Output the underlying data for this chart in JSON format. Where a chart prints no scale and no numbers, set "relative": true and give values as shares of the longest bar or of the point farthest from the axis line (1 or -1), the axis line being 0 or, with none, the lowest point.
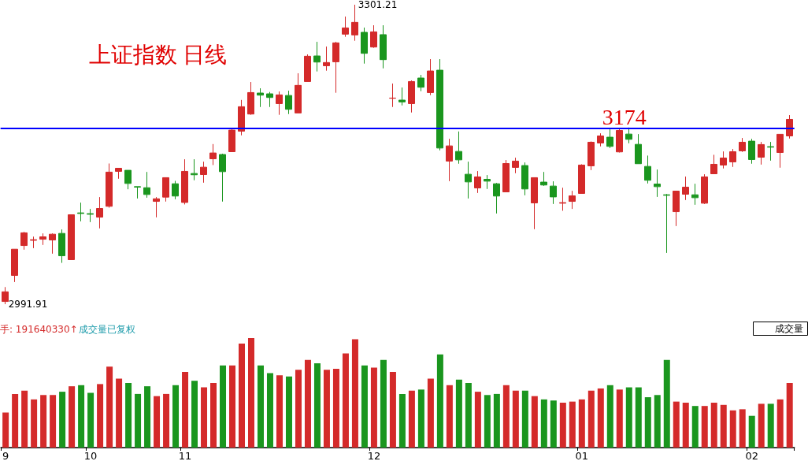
{
  "chart_data": [
    {
      "type": "candlestick",
      "title": "上证指数 日线",
      "tick_labels": false,
      "categories": [
        "9",
        null,
        null,
        null,
        null,
        null,
        null,
        null,
        null,
        "10",
        null,
        null,
        null,
        null,
        null,
        null,
        null,
        null,
        null,
        "11",
        null,
        null,
        null,
        null,
        null,
        null,
        null,
        null,
        null,
        null,
        null,
        null,
        null,
        null,
        null,
        null,
        null,
        null,
        null,
        "12",
        null,
        null,
        null,
        null,
        null,
        null,
        null,
        null,
        null,
        null,
        null,
        null,
        null,
        null,
        null,
        null,
        null,
        null,
        null,
        null,
        null,
        "01",
        null,
        null,
        null,
        null,
        null,
        null,
        null,
        null,
        null,
        null,
        null,
        null,
        null,
        null,
        null,
        null,
        null,
        "02",
        null,
        null,
        null,
        null
      ],
      "ohlc": [
        [
          2994.7,
          3009.6,
          2991.91,
          3004.7
        ],
        [
          3021.6,
          3048.7,
          3014.8,
          3048.7
        ],
        [
          3052.5,
          3066.6,
          3048.2,
          3065.6
        ],
        [
          3057.9,
          3061.7,
          3049.8,
          3058.5
        ],
        [
          3059.0,
          3065.0,
          3053.1,
          3061.5
        ],
        [
          3058.2,
          3065.0,
          3044.1,
          3064.2
        ],
        [
          3065.0,
          3069.1,
          3034.6,
          3041.9
        ],
        [
          3037.9,
          3084.3,
          3037.9,
          3084.3
        ],
        [
          3086.2,
          3096.8,
          3077.5,
          3085.6
        ],
        [
          3085.4,
          3090.3,
          3076.7,
          3084.8
        ],
        [
          3081.8,
          3102.5,
          3070.2,
          3090.8
        ],
        [
          3093.0,
          3137.2,
          3091.6,
          3128.3
        ],
        [
          3129.1,
          3132.3,
          3121.5,
          3132.3
        ],
        [
          3130.2,
          3130.2,
          3110.6,
          3116.6
        ],
        [
          3113.3,
          3113.3,
          3101.1,
          3112.8
        ],
        [
          3112.2,
          3128.5,
          3101.9,
          3105.2
        ],
        [
          3098.1,
          3102.5,
          3081.6,
          3100.8
        ],
        [
          3102.5,
          3122.6,
          3097.9,
          3122.6
        ],
        [
          3116.3,
          3119.3,
          3100.3,
          3103.6
        ],
        [
          3097.0,
          3141.6,
          3094.9,
          3129.1
        ],
        [
          3126.9,
          3141.6,
          3119.9,
          3125.6
        ],
        [
          3125.8,
          3139.1,
          3117.4,
          3133.4
        ],
        [
          3142.1,
          3157.3,
          3135.6,
          3148.1
        ],
        [
          3146.5,
          3147.3,
          3097.9,
          3128.8
        ],
        [
          3149.4,
          3172.5,
          3149.4,
          3171.7
        ],
        [
          3170.6,
          3202.9,
          3166.3,
          3195.9
        ],
        [
          3188.3,
          3221.4,
          3187.5,
          3210.5
        ],
        [
          3210.0,
          3214.9,
          3195.6,
          3207.8
        ],
        [
          3209.2,
          3211.1,
          3195.6,
          3205.4
        ],
        [
          3199.1,
          3211.6,
          3187.5,
          3208.1
        ],
        [
          3207.5,
          3212.4,
          3188.3,
          3193.2
        ],
        [
          3189.4,
          3230.4,
          3189.4,
          3217.9
        ],
        [
          3221.9,
          3249.9,
          3221.9,
          3248.0
        ],
        [
          3248.3,
          3262.9,
          3232.3,
          3242.0
        ],
        [
          3238.2,
          3258.0,
          3233.1,
          3241.5
        ],
        [
          3242.3,
          3262.9,
          3210.3,
          3261.8
        ],
        [
          3270.8,
          3289.0,
          3268.1,
          3277.3
        ],
        [
          3270.0,
          3301.21,
          3264.0,
          3283.0
        ],
        [
          3272.7,
          3277.6,
          3240.4,
          3251.0
        ],
        [
          3257.5,
          3280.0,
          3256.7,
          3273.2
        ],
        [
          3270.3,
          3280.0,
          3235.5,
          3244.5
        ],
        [
          3204.6,
          3219.8,
          3195.6,
          3204.8
        ],
        [
          3202.7,
          3215.7,
          3197.2,
          3200.8
        ],
        [
          3199.1,
          3223.0,
          3189.9,
          3221.9
        ],
        [
          3225.5,
          3228.7,
          3211.9,
          3216.0
        ],
        [
          3210.5,
          3245.0,
          3207.8,
          3232.8
        ],
        [
          3233.6,
          3245.0,
          3150.8,
          3153.2
        ],
        [
          3139.7,
          3162.7,
          3119.0,
          3155.4
        ],
        [
          3149.7,
          3170.3,
          3137.0,
          3141.0
        ],
        [
          3126.1,
          3139.1,
          3101.1,
          3118.2
        ],
        [
          3112.0,
          3129.4,
          3106.8,
          3123.4
        ],
        [
          3120.9,
          3125.3,
          3110.9,
          3119.0
        ],
        [
          3116.3,
          3117.1,
          3085.6,
          3103.6
        ],
        [
          3107.9,
          3140.8,
          3107.9,
          3137.2
        ],
        [
          3133.2,
          3143.2,
          3127.2,
          3139.7
        ],
        [
          3135.1,
          3138.3,
          3104.4,
          3110.9
        ],
        [
          3096.5,
          3122.6,
          3069.4,
          3122.6
        ],
        [
          3118.0,
          3128.5,
          3114.1,
          3115.0
        ],
        [
          3113.9,
          3118.8,
          3095.4,
          3102.7
        ],
        [
          3096.2,
          3112.2,
          3088.4,
          3096.8
        ],
        [
          3098.1,
          3109.0,
          3090.3,
          3103.8
        ],
        [
          3106.3,
          3136.4,
          3106.3,
          3135.6
        ],
        [
          3134.8,
          3160.0,
          3130.4,
          3159.2
        ],
        [
          3158.4,
          3168.4,
          3154.9,
          3165.7
        ],
        [
          3164.4,
          3172.5,
          3153.2,
          3154.9
        ],
        [
          3149.2,
          3173.1,
          3148.6,
          3171.4
        ],
        [
          3167.6,
          3174.4,
          3158.1,
          3162.2
        ],
        [
          3157.0,
          3167.6,
          3137.0,
          3137.0
        ],
        [
          3134.2,
          3145.4,
          3116.6,
          3119.9
        ],
        [
          3116.0,
          3131.0,
          3102.7,
          3113.3
        ],
        [
          3104.9,
          3105.7,
          3044.9,
          3104.4
        ],
        [
          3087.5,
          3108.7,
          3072.6,
          3108.7
        ],
        [
          3105.5,
          3123.7,
          3099.5,
          3112.8
        ],
        [
          3104.9,
          3116.3,
          3094.6,
          3101.9
        ],
        [
          3096.2,
          3126.1,
          3095.4,
          3123.4
        ],
        [
          3126.6,
          3146.2,
          3126.6,
          3136.4
        ],
        [
          3135.6,
          3149.7,
          3132.1,
          3142.9
        ],
        [
          3138.9,
          3152.2,
          3133.7,
          3149.4
        ],
        [
          3150.3,
          3163.6,
          3149.2,
          3159.2
        ],
        [
          3160.3,
          3162.7,
          3137.0,
          3141.3
        ],
        [
          3143.7,
          3159.5,
          3136.1,
          3156.8
        ],
        [
          3154.6,
          3159.5,
          3140.2,
          3154.1
        ],
        [
          3148.6,
          3167.4,
          3132.9,
          3167.4
        ],
        [
          3165.7,
          3187.2,
          3163.0,
          3182.8
        ]
      ],
      "colors": [
        "#d42a2a",
        "#d42a2a",
        "#d42a2a",
        "#d42a2a",
        "#d42a2a",
        "#d42a2a",
        "#1a961e",
        "#d42a2a",
        "#1a961e",
        "#1a961e",
        "#d42a2a",
        "#d42a2a",
        "#d42a2a",
        "#1a961e",
        "#1a961e",
        "#1a961e",
        "#d42a2a",
        "#d42a2a",
        "#1a961e",
        "#d42a2a",
        "#1a961e",
        "#d42a2a",
        "#d42a2a",
        "#1a961e",
        "#d42a2a",
        "#d42a2a",
        "#d42a2a",
        "#1a961e",
        "#1a961e",
        "#d42a2a",
        "#1a961e",
        "#d42a2a",
        "#d42a2a",
        "#1a961e",
        "#d42a2a",
        "#d42a2a",
        "#d42a2a",
        "#d42a2a",
        "#1a961e",
        "#d42a2a",
        "#1a961e",
        "#d42a2a",
        "#1a961e",
        "#d42a2a",
        "#1a961e",
        "#d42a2a",
        "#1a961e",
        "#d42a2a",
        "#1a961e",
        "#1a961e",
        "#d42a2a",
        "#1a961e",
        "#1a961e",
        "#d42a2a",
        "#d42a2a",
        "#1a961e",
        "#d42a2a",
        "#1a961e",
        "#1a961e",
        "#d42a2a",
        "#d42a2a",
        "#d42a2a",
        "#d42a2a",
        "#d42a2a",
        "#1a961e",
        "#d42a2a",
        "#1a961e",
        "#1a961e",
        "#1a961e",
        "#1a961e",
        "#1a961e",
        "#d42a2a",
        "#d42a2a",
        "#1a961e",
        "#d42a2a",
        "#d42a2a",
        "#d42a2a",
        "#d42a2a",
        "#d42a2a",
        "#1a961e",
        "#d42a2a",
        "#1a961e",
        "#d42a2a",
        "#d42a2a"
      ],
      "ref_lines": [
        {
          "axis": "y",
          "value": 3174,
          "label": "3174",
          "color": "#0000ff"
        }
      ],
      "annotations": [
        "3301.21",
        "2991.91"
      ]
    },
    {
      "type": "bar",
      "relative": true,
      "tick_labels": "x",
      "categories": [
        "9",
        null,
        null,
        null,
        null,
        null,
        null,
        null,
        null,
        "10",
        null,
        null,
        null,
        null,
        null,
        null,
        null,
        null,
        null,
        "11",
        null,
        null,
        null,
        null,
        null,
        null,
        null,
        null,
        null,
        null,
        null,
        null,
        null,
        null,
        null,
        null,
        null,
        null,
        null,
        "12",
        null,
        null,
        null,
        null,
        null,
        null,
        null,
        null,
        null,
        null,
        null,
        null,
        null,
        null,
        null,
        null,
        null,
        null,
        null,
        null,
        null,
        "01",
        null,
        null,
        null,
        null,
        null,
        null,
        null,
        null,
        null,
        null,
        null,
        null,
        null,
        null,
        null,
        null,
        null,
        "02",
        null,
        null,
        null,
        null
      ],
      "values": [
        0.32,
        0.49,
        0.52,
        0.44,
        0.48,
        0.48,
        0.51,
        0.56,
        0.57,
        0.5,
        0.58,
        0.74,
        0.63,
        0.59,
        0.49,
        0.56,
        0.47,
        0.49,
        0.57,
        0.69,
        0.61,
        0.55,
        0.59,
        0.75,
        0.75,
        0.95,
        1,
        0.75,
        0.68,
        0.66,
        0.65,
        0.71,
        0.8,
        0.77,
        0.71,
        0.72,
        0.86,
        0.99,
        0.75,
        0.73,
        0.8,
        0.69,
        0.49,
        0.52,
        0.53,
        0.63,
        0.85,
        0.57,
        0.62,
        0.59,
        0.51,
        0.48,
        0.49,
        0.57,
        0.52,
        0.52,
        0.47,
        0.44,
        0.43,
        0.41,
        0.42,
        0.44,
        0.52,
        0.54,
        0.57,
        0.53,
        0.55,
        0.55,
        0.46,
        0.48,
        0.8,
        0.42,
        0.41,
        0.38,
        0.38,
        0.41,
        0.39,
        0.34,
        0.35,
        0.29,
        0.4,
        0.4,
        0.44,
        0.59
      ],
      "colors": [
        "#d42a2a",
        "#d42a2a",
        "#d42a2a",
        "#d42a2a",
        "#d42a2a",
        "#d42a2a",
        "#1a961e",
        "#d42a2a",
        "#1a961e",
        "#1a961e",
        "#d42a2a",
        "#d42a2a",
        "#d42a2a",
        "#1a961e",
        "#1a961e",
        "#1a961e",
        "#d42a2a",
        "#d42a2a",
        "#1a961e",
        "#d42a2a",
        "#1a961e",
        "#d42a2a",
        "#d42a2a",
        "#1a961e",
        "#d42a2a",
        "#d42a2a",
        "#d42a2a",
        "#1a961e",
        "#1a961e",
        "#d42a2a",
        "#1a961e",
        "#d42a2a",
        "#d42a2a",
        "#1a961e",
        "#d42a2a",
        "#d42a2a",
        "#d42a2a",
        "#d42a2a",
        "#1a961e",
        "#d42a2a",
        "#1a961e",
        "#d42a2a",
        "#1a961e",
        "#d42a2a",
        "#1a961e",
        "#d42a2a",
        "#1a961e",
        "#d42a2a",
        "#1a961e",
        "#1a961e",
        "#d42a2a",
        "#1a961e",
        "#1a961e",
        "#d42a2a",
        "#d42a2a",
        "#1a961e",
        "#d42a2a",
        "#1a961e",
        "#1a961e",
        "#d42a2a",
        "#d42a2a",
        "#d42a2a",
        "#d42a2a",
        "#d42a2a",
        "#1a961e",
        "#d42a2a",
        "#1a961e",
        "#1a961e",
        "#1a961e",
        "#1a961e",
        "#1a961e",
        "#d42a2a",
        "#d42a2a",
        "#1a961e",
        "#d42a2a",
        "#d42a2a",
        "#d42a2a",
        "#d42a2a",
        "#d42a2a",
        "#1a961e",
        "#d42a2a",
        "#1a961e",
        "#d42a2a",
        "#d42a2a"
      ],
      "annotations": [
        "手: 191640330↑",
        "成交量已复权",
        "成交量"
      ]
    }
  ]
}
